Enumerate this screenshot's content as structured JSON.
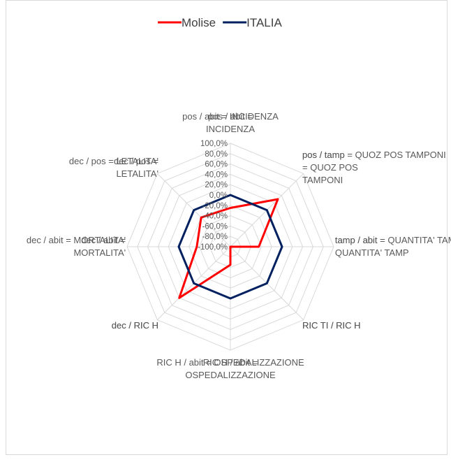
{
  "chart_data": {
    "type": "radar",
    "categories": [
      "pos / abit =\nINCIDENZA",
      "pos / tamp\n= QUOZ POS\nTAMPONI",
      "tamp / abit =\nQUANTITA' TAMP",
      "RIC TI / RIC H",
      "RIC H / abit =\nOSPEDALIZZAZIONE",
      "dec  / RIC H",
      "dec / abit =\nMORTALITA'",
      "dec / pos =\nLETALITA'"
    ],
    "series": [
      {
        "name": "Molise",
        "color": "#ff0000",
        "values": [
          -25,
          30,
          -45,
          -100,
          -65,
          40,
          -35,
          -20
        ]
      },
      {
        "name": "ITALIA",
        "color": "#002060",
        "values": [
          0,
          0,
          0,
          0,
          0,
          0,
          0,
          0
        ]
      }
    ],
    "ylim": [
      -100,
      100
    ],
    "yticks": [
      {
        "value": -100,
        "label": "-100,0%"
      },
      {
        "value": -80,
        "label": "-80,0%"
      },
      {
        "value": -60,
        "label": "-60,0%"
      },
      {
        "value": -40,
        "label": "-40,0%"
      },
      {
        "value": -20,
        "label": "-20,0%"
      },
      {
        "value": 0,
        "label": "0,0%"
      },
      {
        "value": 20,
        "label": "20,0%"
      },
      {
        "value": 40,
        "label": "40,0%"
      },
      {
        "value": 60,
        "label": "60,0%"
      },
      {
        "value": 80,
        "label": "80,0%"
      },
      {
        "value": 100,
        "label": "100,0%"
      }
    ],
    "grid": true,
    "legend": "top"
  }
}
